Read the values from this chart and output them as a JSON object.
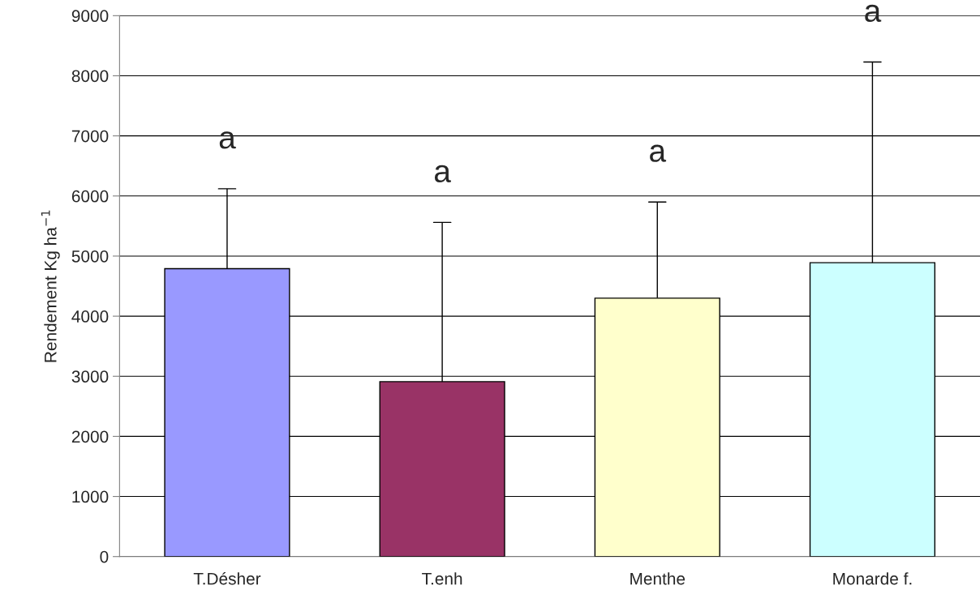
{
  "chart_data": {
    "type": "bar",
    "ylabel": "Rendement Kg ha$^{−1}$",
    "categories": [
      "T.Désher",
      "T.enh",
      "Menthe",
      "Monarde f."
    ],
    "values": [
      4790,
      2910,
      4300,
      4890
    ],
    "colors": [
      "#9999ff",
      "#993366",
      "#ffffcc",
      "#ccffff"
    ],
    "errors": [
      [
        4790,
        6120
      ],
      [
        2910,
        5560
      ],
      [
        4300,
        5900
      ],
      [
        4890,
        8230
      ]
    ],
    "annotations": [
      "a",
      "a",
      "a",
      "a"
    ],
    "ylim": [
      0,
      9000
    ],
    "yticks": [
      0,
      1000,
      2000,
      3000,
      4000,
      5000,
      6000,
      7000,
      8000,
      9000
    ],
    "grid": "y"
  }
}
